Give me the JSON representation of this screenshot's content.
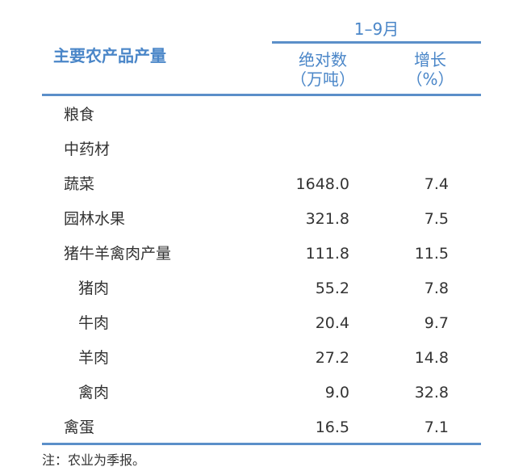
{
  "header": {
    "row_label": "主要农产品产量",
    "period": "1–9月",
    "col1_line1": "绝对数",
    "col1_line2": "（万吨）",
    "col2_line1": "增长",
    "col2_line2": "（%）"
  },
  "rows": [
    {
      "label": "粮食",
      "value": "",
      "growth": "",
      "indent": false
    },
    {
      "label": "中药材",
      "value": "",
      "growth": "",
      "indent": false
    },
    {
      "label": "蔬菜",
      "value": "1648.0",
      "growth": "7.4",
      "indent": false
    },
    {
      "label": "园林水果",
      "value": "321.8",
      "growth": "7.5",
      "indent": false
    },
    {
      "label": "猪牛羊禽肉产量",
      "value": "111.8",
      "growth": "11.5",
      "indent": false
    },
    {
      "label": "猪肉",
      "value": "55.2",
      "growth": "7.8",
      "indent": true
    },
    {
      "label": "牛肉",
      "value": "20.4",
      "growth": "9.7",
      "indent": true
    },
    {
      "label": "羊肉",
      "value": "27.2",
      "growth": "14.8",
      "indent": true
    },
    {
      "label": "禽肉",
      "value": "9.0",
      "growth": "32.8",
      "indent": true
    },
    {
      "label": "禽蛋",
      "value": "16.5",
      "growth": "7.1",
      "indent": false
    }
  ],
  "note": "注：农业为季报。",
  "colors": {
    "header": "#4a86c8",
    "rule": "#5b8fc9",
    "text": "#333333"
  }
}
